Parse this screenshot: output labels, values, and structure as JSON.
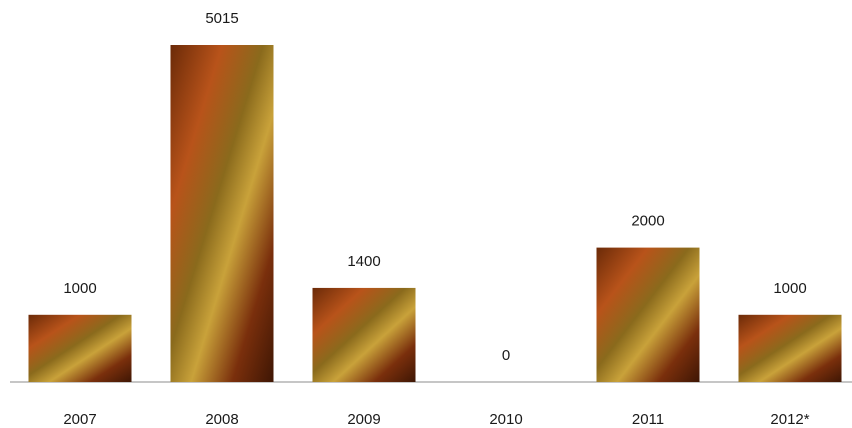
{
  "chart_data": {
    "type": "bar",
    "categories": [
      "2007",
      "2008",
      "2009",
      "2010",
      "2011",
      "2012*"
    ],
    "values": [
      1000,
      5015,
      1400,
      0,
      2000,
      1000
    ]
  }
}
